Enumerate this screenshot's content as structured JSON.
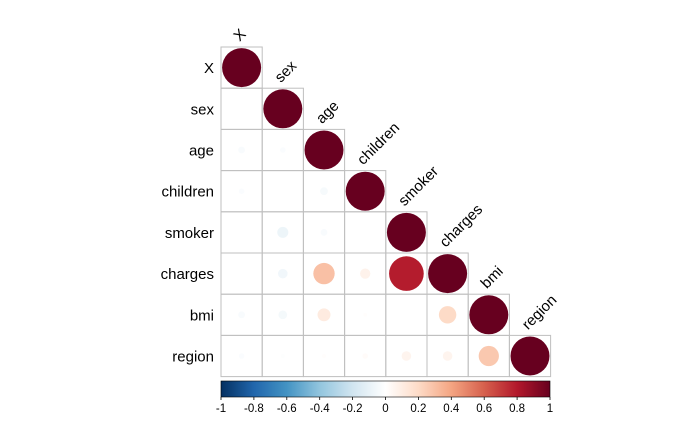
{
  "chart_data": {
    "type": "heatmap",
    "subtype": "correlation-matrix-lower-triangle-circles",
    "variables": [
      "X",
      "sex",
      "age",
      "children",
      "smoker",
      "charges",
      "bmi",
      "region"
    ],
    "matrix": [
      [
        1,
        null,
        null,
        null,
        null,
        null,
        null,
        null
      ],
      [
        0.0,
        1,
        null,
        null,
        null,
        null,
        null,
        null
      ],
      [
        -0.03,
        -0.02,
        1,
        null,
        null,
        null,
        null,
        null
      ],
      [
        -0.02,
        0.0,
        -0.04,
        1,
        null,
        null,
        null,
        null
      ],
      [
        0.0,
        -0.08,
        -0.03,
        0.0,
        1,
        null,
        null,
        null
      ],
      [
        0.0,
        -0.06,
        0.3,
        0.07,
        0.79,
        1,
        null,
        null
      ],
      [
        -0.03,
        -0.05,
        0.11,
        0.01,
        0.0,
        0.2,
        1,
        null
      ],
      [
        -0.02,
        -0.01,
        0.01,
        0.02,
        0.06,
        0.06,
        0.27,
        1
      ]
    ],
    "colorbar": {
      "range": [
        -1,
        1
      ],
      "ticks": [
        "-1",
        "-0.8",
        "-0.6",
        "-0.4",
        "-0.2",
        "0",
        "0.2",
        "0.4",
        "0.6",
        "0.8",
        "1"
      ],
      "palette": [
        "#053061",
        "#2166AC",
        "#4393C3",
        "#92C5DE",
        "#D1E5F0",
        "#FFFFFF",
        "#FDDBC7",
        "#F4A582",
        "#D6604D",
        "#B2182B",
        "#67001F"
      ]
    },
    "grid_color": "#bfbfbf"
  }
}
